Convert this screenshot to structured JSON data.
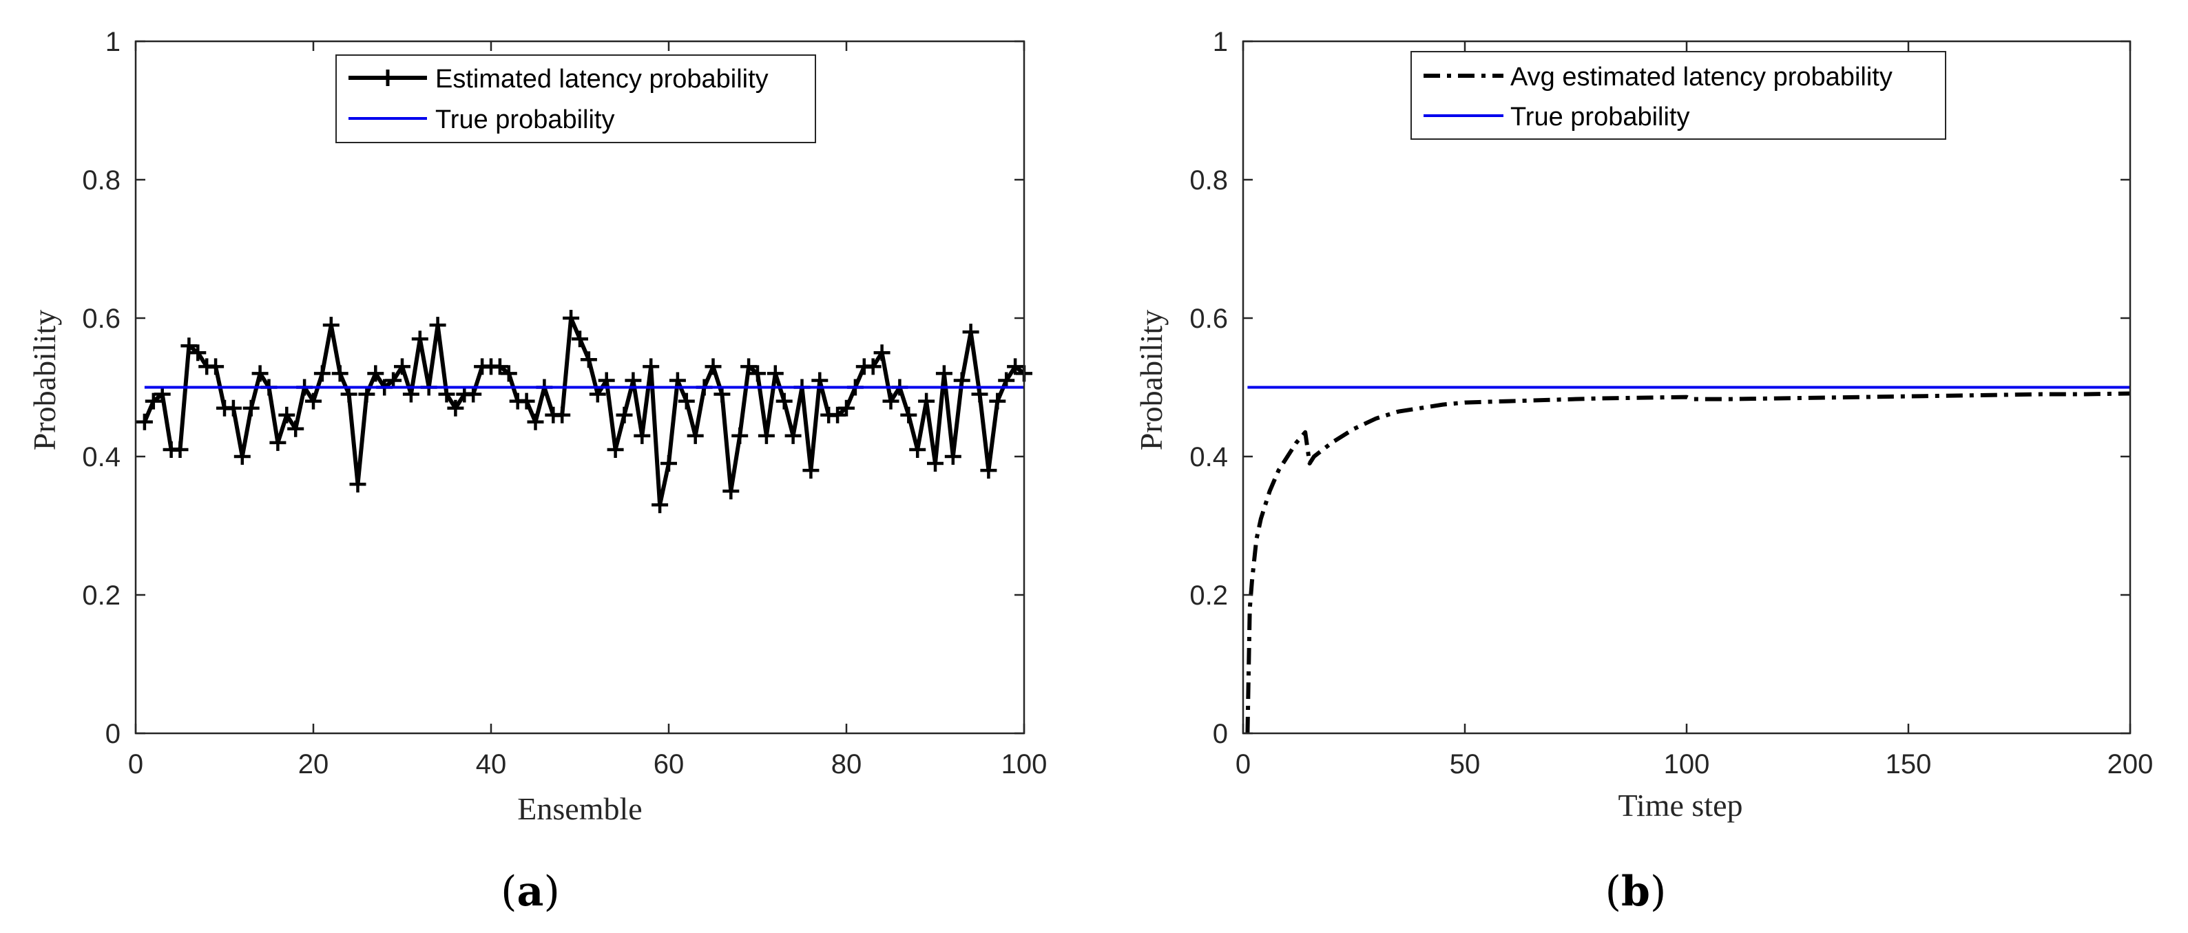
{
  "chart_data": [
    {
      "panel": "a",
      "type": "line",
      "caption_paren_open": "(",
      "caption_letter": "a",
      "caption_paren_close": ")",
      "xlabel": "Ensemble",
      "ylabel": "Probability",
      "xlim": [
        0,
        100
      ],
      "ylim": [
        0,
        1
      ],
      "xticks": [
        0,
        20,
        40,
        60,
        80,
        100
      ],
      "yticks": [
        0,
        0.2,
        0.4,
        0.6,
        0.8,
        1
      ],
      "xtick_labels": [
        "0",
        "20",
        "40",
        "60",
        "80",
        "100"
      ],
      "ytick_labels": [
        "0",
        "0.2",
        "0.4",
        "0.6",
        "0.8",
        "1"
      ],
      "legend_position": "top-center",
      "series": [
        {
          "name": "Estimated latency probability",
          "style": "solid-plus-markers",
          "color": "#000000",
          "x": [
            1,
            2,
            3,
            4,
            5,
            6,
            7,
            8,
            9,
            10,
            11,
            12,
            13,
            14,
            15,
            16,
            17,
            18,
            19,
            20,
            21,
            22,
            23,
            24,
            25,
            26,
            27,
            28,
            29,
            30,
            31,
            32,
            33,
            34,
            35,
            36,
            37,
            38,
            39,
            40,
            41,
            42,
            43,
            44,
            45,
            46,
            47,
            48,
            49,
            50,
            51,
            52,
            53,
            54,
            55,
            56,
            57,
            58,
            59,
            60,
            61,
            62,
            63,
            64,
            65,
            66,
            67,
            68,
            69,
            70,
            71,
            72,
            73,
            74,
            75,
            76,
            77,
            78,
            79,
            80,
            81,
            82,
            83,
            84,
            85,
            86,
            87,
            88,
            89,
            90,
            91,
            92,
            93,
            94,
            95,
            96,
            97,
            98,
            99,
            100
          ],
          "values": [
            0.45,
            0.48,
            0.49,
            0.41,
            0.41,
            0.56,
            0.55,
            0.53,
            0.53,
            0.47,
            0.47,
            0.4,
            0.47,
            0.52,
            0.5,
            0.42,
            0.46,
            0.44,
            0.5,
            0.48,
            0.52,
            0.59,
            0.52,
            0.49,
            0.36,
            0.49,
            0.52,
            0.5,
            0.51,
            0.53,
            0.49,
            0.57,
            0.5,
            0.59,
            0.49,
            0.47,
            0.49,
            0.49,
            0.53,
            0.53,
            0.53,
            0.52,
            0.48,
            0.48,
            0.45,
            0.5,
            0.46,
            0.46,
            0.6,
            0.57,
            0.54,
            0.49,
            0.51,
            0.41,
            0.46,
            0.51,
            0.43,
            0.53,
            0.33,
            0.39,
            0.51,
            0.48,
            0.43,
            0.5,
            0.53,
            0.49,
            0.35,
            0.43,
            0.53,
            0.52,
            0.43,
            0.52,
            0.48,
            0.43,
            0.5,
            0.38,
            0.51,
            0.46,
            0.46,
            0.47,
            0.5,
            0.53,
            0.53,
            0.55,
            0.48,
            0.5,
            0.46,
            0.41,
            0.48,
            0.39,
            0.52,
            0.4,
            0.51,
            0.58,
            0.49,
            0.38,
            0.48,
            0.51,
            0.53,
            0.52
          ]
        },
        {
          "name": "True probability",
          "style": "solid",
          "color": "#0000ee",
          "x": [
            1,
            100
          ],
          "values": [
            0.5,
            0.5
          ]
        }
      ]
    },
    {
      "panel": "b",
      "type": "line",
      "caption_paren_open": "(",
      "caption_letter": "b",
      "caption_paren_close": ")",
      "xlabel": "Time step",
      "ylabel": "Probability",
      "xlim": [
        0,
        200
      ],
      "ylim": [
        0,
        1
      ],
      "xticks": [
        0,
        50,
        100,
        150,
        200
      ],
      "yticks": [
        0,
        0.2,
        0.4,
        0.6,
        0.8,
        1
      ],
      "xtick_labels": [
        "0",
        "50",
        "100",
        "150",
        "200"
      ],
      "ytick_labels": [
        "0",
        "0.2",
        "0.4",
        "0.6",
        "0.8",
        "1"
      ],
      "legend_position": "top-center",
      "series": [
        {
          "name": "Avg estimated latency probability",
          "style": "dash-dot",
          "color": "#000000",
          "x": [
            1,
            1.5,
            2,
            3,
            4,
            5,
            6,
            8,
            10,
            12,
            14,
            15,
            16,
            18,
            20,
            25,
            30,
            35,
            40,
            45,
            50,
            60,
            70,
            80,
            90,
            100,
            101,
            110,
            120,
            130,
            140,
            150,
            160,
            170,
            180,
            190,
            200
          ],
          "values": [
            0.0,
            0.18,
            0.22,
            0.28,
            0.31,
            0.33,
            0.35,
            0.38,
            0.4,
            0.42,
            0.435,
            0.39,
            0.4,
            0.41,
            0.42,
            0.44,
            0.455,
            0.465,
            0.47,
            0.475,
            0.478,
            0.48,
            0.482,
            0.484,
            0.485,
            0.486,
            0.483,
            0.483,
            0.484,
            0.485,
            0.486,
            0.487,
            0.488,
            0.489,
            0.49,
            0.49,
            0.491
          ]
        },
        {
          "name": "True probability",
          "style": "solid",
          "color": "#0000ee",
          "x": [
            1,
            200
          ],
          "values": [
            0.5,
            0.5
          ]
        }
      ]
    }
  ]
}
